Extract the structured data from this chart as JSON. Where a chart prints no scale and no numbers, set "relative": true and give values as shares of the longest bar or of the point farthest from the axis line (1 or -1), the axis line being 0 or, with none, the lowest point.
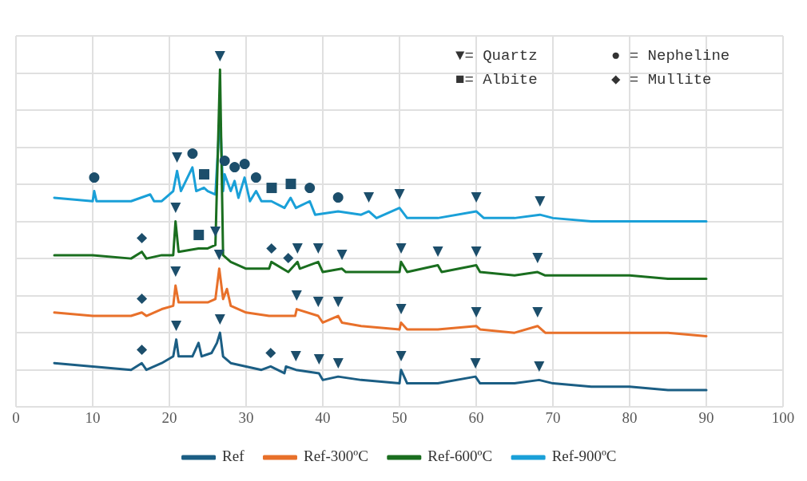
{
  "chart_data": {
    "type": "line",
    "relative": true,
    "marker": "none",
    "line_style": "solid",
    "grid": true,
    "legend": "bottom",
    "xlim": [
      0,
      100
    ],
    "xticks": [
      0,
      10,
      20,
      30,
      40,
      50,
      60,
      70,
      80,
      90,
      100
    ],
    "series": [
      {
        "name": "Ref",
        "color": "#1b5e84",
        "x": [
          5,
          10,
          15,
          16.4,
          17,
          19,
          20.5,
          20.9,
          21.2,
          23,
          23.8,
          24.2,
          25.5,
          26.2,
          26.6,
          27,
          28,
          30,
          32,
          33.2,
          35,
          35.2,
          36.5,
          39.5,
          40,
          42,
          45,
          50,
          50.2,
          51,
          55,
          59.9,
          60.5,
          65,
          68.2,
          70,
          75,
          80,
          85,
          90
        ],
        "values": [
          0.13,
          0.12,
          0.11,
          0.13,
          0.11,
          0.13,
          0.15,
          0.2,
          0.15,
          0.15,
          0.19,
          0.15,
          0.16,
          0.19,
          0.22,
          0.15,
          0.13,
          0.12,
          0.11,
          0.12,
          0.1,
          0.12,
          0.11,
          0.1,
          0.08,
          0.09,
          0.08,
          0.07,
          0.11,
          0.07,
          0.07,
          0.09,
          0.07,
          0.07,
          0.08,
          0.07,
          0.06,
          0.06,
          0.05,
          0.05
        ]
      },
      {
        "name": "Ref-300ºC",
        "color": "#e8702a",
        "x": [
          5,
          10,
          15,
          16.4,
          17,
          19,
          20.5,
          20.8,
          21.2,
          23,
          25,
          26,
          26.5,
          27,
          27.5,
          28,
          30,
          33,
          36.4,
          36.6,
          39.4,
          40,
          42,
          42.5,
          45,
          50,
          50.2,
          51,
          55,
          60,
          60.5,
          65,
          68,
          69,
          75,
          80,
          85,
          90
        ],
        "values": [
          0.28,
          0.27,
          0.27,
          0.28,
          0.27,
          0.29,
          0.3,
          0.36,
          0.31,
          0.31,
          0.31,
          0.32,
          0.41,
          0.32,
          0.35,
          0.3,
          0.28,
          0.27,
          0.27,
          0.29,
          0.27,
          0.25,
          0.27,
          0.25,
          0.24,
          0.23,
          0.25,
          0.23,
          0.23,
          0.24,
          0.23,
          0.22,
          0.24,
          0.22,
          0.22,
          0.22,
          0.22,
          0.21
        ]
      },
      {
        "name": "Ref-600ºC",
        "color": "#1a6e1f",
        "x": [
          5,
          10,
          15,
          16.4,
          17,
          19,
          20.5,
          20.8,
          21.2,
          23.8,
          25,
          26,
          26.6,
          27,
          28,
          30,
          33,
          33.3,
          35.5,
          36.7,
          37,
          39.4,
          40,
          42.5,
          43,
          45,
          50,
          50.2,
          51,
          55,
          55.5,
          60,
          60.5,
          65,
          68,
          69,
          75,
          80,
          85,
          90
        ],
        "values": [
          0.45,
          0.45,
          0.44,
          0.46,
          0.44,
          0.45,
          0.45,
          0.55,
          0.46,
          0.47,
          0.47,
          0.48,
          1,
          0.45,
          0.43,
          0.41,
          0.41,
          0.43,
          0.4,
          0.43,
          0.41,
          0.43,
          0.4,
          0.41,
          0.4,
          0.4,
          0.4,
          0.43,
          0.4,
          0.42,
          0.4,
          0.42,
          0.4,
          0.39,
          0.4,
          0.39,
          0.39,
          0.39,
          0.38,
          0.38
        ]
      },
      {
        "name": "Ref-900ºC",
        "color": "#1aa0d8",
        "x": [
          5,
          10,
          10.2,
          10.5,
          15,
          17.5,
          18,
          19,
          20.5,
          21,
          21.5,
          23,
          23.5,
          24.5,
          25,
          26,
          26.6,
          27,
          27.2,
          28,
          28.5,
          29,
          29.8,
          30.5,
          31.3,
          32,
          33.3,
          35,
          35.8,
          36.5,
          38.3,
          39,
          42,
          45,
          46,
          47,
          50,
          51,
          55,
          60,
          61,
          65,
          68.3,
          70,
          75,
          80,
          85,
          90
        ],
        "values": [
          0.62,
          0.61,
          0.64,
          0.61,
          0.61,
          0.63,
          0.61,
          0.61,
          0.64,
          0.7,
          0.64,
          0.71,
          0.64,
          0.65,
          0.64,
          0.63,
          0.87,
          0.64,
          0.69,
          0.64,
          0.67,
          0.62,
          0.68,
          0.61,
          0.64,
          0.61,
          0.61,
          0.59,
          0.62,
          0.59,
          0.61,
          0.57,
          0.58,
          0.57,
          0.58,
          0.56,
          0.59,
          0.56,
          0.56,
          0.58,
          0.56,
          0.56,
          0.57,
          0.56,
          0.55,
          0.55,
          0.55,
          0.55
        ]
      }
    ],
    "annotations": [
      "▼= Quartz",
      "● = Nepheline",
      "■= Albite",
      "◆ = Mullite",
      {
        "text": "▼",
        "x": 20.9,
        "y": 0.2
      },
      {
        "text": "▼",
        "x": 26.6,
        "y": 0.22
      },
      {
        "text": "▼",
        "x": 36.5,
        "y": 0.11
      },
      {
        "text": "▼",
        "x": 39.5,
        "y": 0.1
      },
      {
        "text": "▼",
        "x": 42,
        "y": 0.09
      },
      {
        "text": "▼",
        "x": 50.2,
        "y": 0.11
      },
      {
        "text": "▼",
        "x": 59.9,
        "y": 0.09
      },
      {
        "text": "▼",
        "x": 68.2,
        "y": 0.08
      },
      {
        "text": "◆",
        "x": 16.4,
        "y": 0.13
      },
      {
        "text": "◆",
        "x": 33.2,
        "y": 0.12
      },
      {
        "text": "▼",
        "x": 20.8,
        "y": 0.36
      },
      {
        "text": "▼",
        "x": 26.5,
        "y": 0.41
      },
      {
        "text": "▼",
        "x": 36.6,
        "y": 0.29
      },
      {
        "text": "▼",
        "x": 39.4,
        "y": 0.27
      },
      {
        "text": "▼",
        "x": 42,
        "y": 0.27
      },
      {
        "text": "▼",
        "x": 50.2,
        "y": 0.25
      },
      {
        "text": "▼",
        "x": 60,
        "y": 0.24
      },
      {
        "text": "▼",
        "x": 68,
        "y": 0.24
      },
      {
        "text": "◆",
        "x": 16.4,
        "y": 0.28
      },
      {
        "text": "▼",
        "x": 20.8,
        "y": 0.55
      },
      {
        "text": "▼",
        "x": 26,
        "y": 0.48
      },
      {
        "text": "▼",
        "x": 36.7,
        "y": 0.43
      },
      {
        "text": "▼",
        "x": 39.4,
        "y": 0.43
      },
      {
        "text": "▼",
        "x": 42.5,
        "y": 0.41
      },
      {
        "text": "▼",
        "x": 50.2,
        "y": 0.43
      },
      {
        "text": "▼",
        "x": 55,
        "y": 0.42
      },
      {
        "text": "▼",
        "x": 60,
        "y": 0.42
      },
      {
        "text": "▼",
        "x": 68,
        "y": 0.4
      },
      {
        "text": "◆",
        "x": 16.4,
        "y": 0.46
      },
      {
        "text": "◆",
        "x": 33.3,
        "y": 0.43
      },
      {
        "text": "◆",
        "x": 35.5,
        "y": 0.4
      },
      {
        "text": "■",
        "x": 23.8,
        "y": 0.47
      },
      {
        "text": "▼",
        "x": 26.6,
        "y": 1
      },
      {
        "text": "▼",
        "x": 21,
        "y": 0.7
      },
      {
        "text": "▼",
        "x": 46,
        "y": 0.58
      },
      {
        "text": "▼",
        "x": 50,
        "y": 0.59
      },
      {
        "text": "▼",
        "x": 60,
        "y": 0.58
      },
      {
        "text": "▼",
        "x": 68.3,
        "y": 0.57
      },
      {
        "text": "●",
        "x": 10.2,
        "y": 0.64
      },
      {
        "text": "●",
        "x": 23,
        "y": 0.71
      },
      {
        "text": "●",
        "x": 27.2,
        "y": 0.69
      },
      {
        "text": "●",
        "x": 28.5,
        "y": 0.67
      },
      {
        "text": "●",
        "x": 29.8,
        "y": 0.68
      },
      {
        "text": "●",
        "x": 31.3,
        "y": 0.64
      },
      {
        "text": "●",
        "x": 38.3,
        "y": 0.61
      },
      {
        "text": "●",
        "x": 42,
        "y": 0.58
      },
      {
        "text": "■",
        "x": 24.5,
        "y": 0.65
      },
      {
        "text": "■",
        "x": 33.3,
        "y": 0.61
      },
      {
        "text": "■",
        "x": 35.8,
        "y": 0.62
      }
    ]
  }
}
